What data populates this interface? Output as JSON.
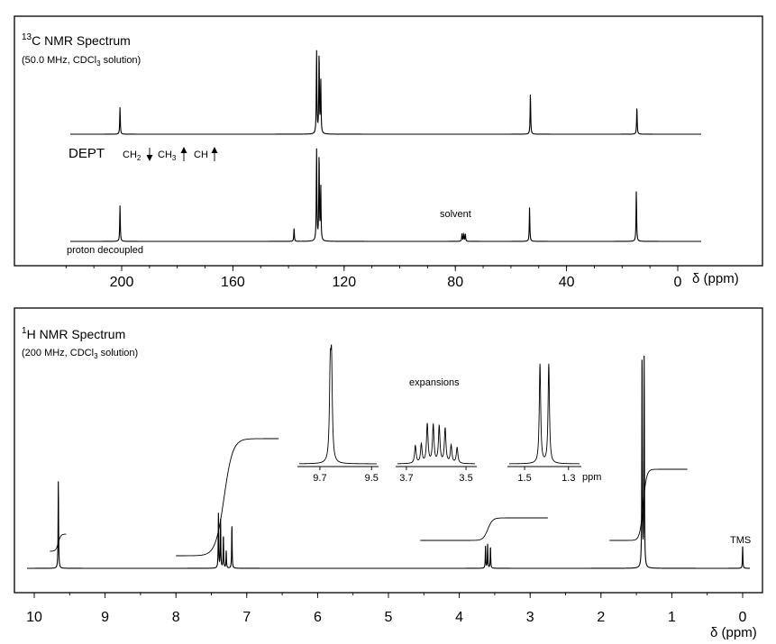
{
  "carbon": {
    "title_sup": "13",
    "title_text": "C NMR Spectrum",
    "conditions_pre": "(50.0 MHz, CDCl",
    "conditions_sub": "3",
    "conditions_post": " solution)",
    "dept": {
      "label": "DEPT",
      "ch2": "CH",
      "ch2_sub": "2",
      "ch3": "CH",
      "ch3_sub": "3",
      "ch": "CH"
    },
    "proton_decoupled_label": "proton decoupled",
    "solvent_label": "solvent",
    "x_unit": "δ (ppm)"
  },
  "proton": {
    "title_sup": "1",
    "title_text": "H NMR Spectrum",
    "conditions_pre": "(200 MHz, CDCl",
    "conditions_sub": "3",
    "conditions_post": " solution)",
    "expansions_label": "expansions",
    "ppm_label": "ppm",
    "tms_label": "TMS",
    "x_unit": "δ (ppm)"
  },
  "chart_data": [
    {
      "type": "line",
      "title": "13C NMR Spectrum",
      "subtitle": "(50.0 MHz, CDCl3 solution)",
      "xlabel": "δ (ppm)",
      "xlim": [
        226,
        -6
      ],
      "xticks": [
        200,
        160,
        120,
        80,
        40,
        0
      ],
      "series": [
        {
          "name": "DEPT",
          "peaks": [
            {
              "ppm": 200.6,
              "height": 0.3,
              "direction": "up"
            },
            {
              "ppm": 129.9,
              "height": 0.92,
              "direction": "up"
            },
            {
              "ppm": 129.0,
              "height": 0.92,
              "direction": "up"
            },
            {
              "ppm": 128.4,
              "height": 0.6,
              "direction": "up"
            },
            {
              "ppm": 53.0,
              "height": 0.46,
              "direction": "up"
            },
            {
              "ppm": 14.7,
              "height": 0.31,
              "direction": "up"
            }
          ]
        },
        {
          "name": "proton decoupled",
          "peaks": [
            {
              "ppm": 200.6,
              "height": 0.38
            },
            {
              "ppm": 138.0,
              "height": 0.14
            },
            {
              "ppm": 129.9,
              "height": 0.97
            },
            {
              "ppm": 129.0,
              "height": 0.94
            },
            {
              "ppm": 128.4,
              "height": 0.58
            },
            {
              "ppm": 77.6,
              "height": 0.08
            },
            {
              "ppm": 77.0,
              "height": 0.08
            },
            {
              "ppm": 76.4,
              "height": 0.08
            },
            {
              "ppm": 53.3,
              "height": 0.36
            },
            {
              "ppm": 14.9,
              "height": 0.55
            }
          ]
        }
      ],
      "annotations": [
        "solvent"
      ]
    },
    {
      "type": "line",
      "title": "1H NMR Spectrum",
      "subtitle": "(200 MHz, CDCl3 solution)",
      "xlabel": "δ (ppm)",
      "xlim": [
        10.35,
        -0.05
      ],
      "xticks": [
        10,
        9,
        8,
        7,
        6,
        5,
        4,
        3,
        2,
        1,
        0
      ],
      "peaks": [
        {
          "ppm": 9.66,
          "height": 0.4
        },
        {
          "ppm": 7.4,
          "height": 0.25
        },
        {
          "ppm": 7.37,
          "height": 0.22
        },
        {
          "ppm": 7.33,
          "height": 0.15
        },
        {
          "ppm": 7.29,
          "height": 0.08
        },
        {
          "ppm": 7.21,
          "height": 0.2
        },
        {
          "ppm": 3.63,
          "height": 0.1
        },
        {
          "ppm": 3.6,
          "height": 0.11
        },
        {
          "ppm": 3.56,
          "height": 0.1
        },
        {
          "ppm": 1.42,
          "height": 1.0
        },
        {
          "ppm": 1.39,
          "height": 0.96
        },
        {
          "ppm": 0.0,
          "height": 0.1
        }
      ],
      "integrals": [
        {
          "from": 9.78,
          "to": 9.55,
          "start": 612,
          "end": 593
        },
        {
          "from": 8.0,
          "to": 6.55,
          "start": 617,
          "end": 487
        },
        {
          "from": 4.55,
          "to": 2.75,
          "start": 600,
          "end": 575
        },
        {
          "from": 1.88,
          "to": 0.78,
          "start": 600,
          "end": 521
        }
      ],
      "expansions": [
        {
          "xticks": [
            9.7,
            9.5
          ],
          "xlim": [
            9.78,
            9.48
          ],
          "peaks": [
            {
              "ppm": 9.66,
              "height": 0.82
            },
            {
              "ppm": 9.655,
              "height": 0.9
            }
          ]
        },
        {
          "xticks": [
            3.7,
            3.5
          ],
          "xlim": [
            3.73,
            3.47
          ],
          "peaks": [
            {
              "ppm": 3.67,
              "height": 0.28
            },
            {
              "ppm": 3.65,
              "height": 0.3
            },
            {
              "ppm": 3.63,
              "height": 0.62
            },
            {
              "ppm": 3.61,
              "height": 0.6
            },
            {
              "ppm": 3.59,
              "height": 0.58
            },
            {
              "ppm": 3.57,
              "height": 0.55
            },
            {
              "ppm": 3.55,
              "height": 0.28
            },
            {
              "ppm": 3.53,
              "height": 0.25
            }
          ]
        },
        {
          "xticks": [
            1.5,
            1.3
          ],
          "xlim": [
            1.57,
            1.25
          ],
          "peaks": [
            {
              "ppm": 1.43,
              "height": 0.95
            },
            {
              "ppm": 1.39,
              "height": 0.95
            }
          ]
        }
      ],
      "annotations": [
        "expansions",
        "TMS"
      ]
    }
  ]
}
